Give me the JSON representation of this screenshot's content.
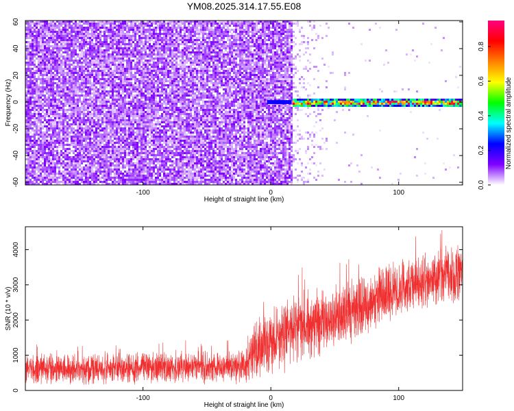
{
  "title": "YM08.2025.314.17.55.E08",
  "chart_data": [
    {
      "type": "heatmap",
      "xlabel": "Height of straight line (km)",
      "ylabel": "Frequency (Hz)",
      "xlim": [
        -192,
        150
      ],
      "ylim": [
        -62,
        61
      ],
      "x_ticks": [
        -100,
        0,
        100
      ],
      "y_ticks": [
        -60,
        -40,
        -20,
        0,
        20,
        40,
        60
      ],
      "colorbar": {
        "label": "Normalized spectral amplitude",
        "range": [
          0.0,
          0.95
        ],
        "ticks": [
          0.0,
          0.2,
          0.4,
          0.6,
          0.8
        ],
        "tick_labels": [
          "0.0",
          "0.2",
          "0.4",
          "0.6",
          "0.8"
        ],
        "colors": [
          "#ffffff",
          "#7f00ff",
          "#0000ff",
          "#00ffff",
          "#00ff00",
          "#ffff00",
          "#ff8000",
          "#ff0000",
          "#ff0080"
        ]
      },
      "regions": [
        {
          "x_range": [
            -192,
            17
          ],
          "f_range": [
            -62,
            61
          ],
          "amplitude_range": [
            0.02,
            0.12
          ]
        },
        {
          "x_range": [
            17,
            150
          ],
          "f_center": 0,
          "f_halfwidth": 3,
          "amplitude_range": [
            0.3,
            0.95
          ]
        }
      ]
    },
    {
      "type": "line",
      "xlabel": "Height of straight line (km)",
      "ylabel": "SNR (10 * v/v)",
      "xlim": [
        -192,
        150
      ],
      "ylim": [
        0,
        4650
      ],
      "x_ticks": [
        -100,
        0,
        100
      ],
      "y_ticks": [
        0,
        1000,
        2000,
        3000,
        4000
      ],
      "color": "#f03030",
      "trend": [
        {
          "x": -192,
          "low": 100,
          "high": 1100
        },
        {
          "x": -20,
          "low": 150,
          "high": 1200
        },
        {
          "x": -12,
          "low": 200,
          "high": 2200
        },
        {
          "x": 20,
          "low": 600,
          "high": 2900
        },
        {
          "x": 60,
          "low": 1200,
          "high": 3300
        },
        {
          "x": 110,
          "low": 2100,
          "high": 3900
        },
        {
          "x": 150,
          "low": 2500,
          "high": 4300
        }
      ]
    }
  ]
}
